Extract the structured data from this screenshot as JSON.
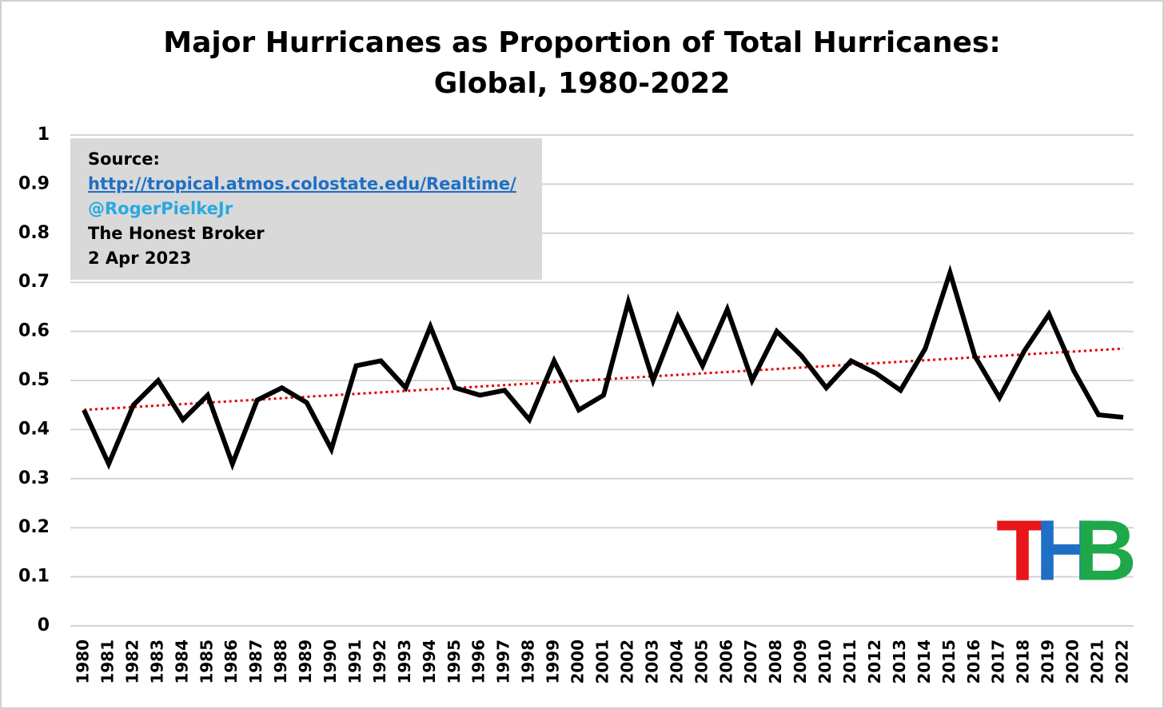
{
  "chart_data": {
    "type": "line",
    "title": "Major Hurricanes as Proportion of Total Hurricanes:",
    "subtitle": "Global, 1980-2022",
    "categories": [
      "1980",
      "1981",
      "1982",
      "1983",
      "1984",
      "1985",
      "1986",
      "1987",
      "1988",
      "1989",
      "1990",
      "1991",
      "1992",
      "1993",
      "1994",
      "1995",
      "1996",
      "1997",
      "1998",
      "1999",
      "2000",
      "2001",
      "2002",
      "2003",
      "2004",
      "2005",
      "2006",
      "2007",
      "2008",
      "2009",
      "2010",
      "2011",
      "2012",
      "2013",
      "2014",
      "2015",
      "2016",
      "2017",
      "2018",
      "2019",
      "2020",
      "2021",
      "2022"
    ],
    "values": [
      0.44,
      0.33,
      0.45,
      0.5,
      0.42,
      0.47,
      0.33,
      0.46,
      0.485,
      0.455,
      0.36,
      0.53,
      0.54,
      0.485,
      0.61,
      0.485,
      0.47,
      0.48,
      0.42,
      0.54,
      0.44,
      0.47,
      0.66,
      0.5,
      0.63,
      0.53,
      0.645,
      0.5,
      0.6,
      0.55,
      0.485,
      0.54,
      0.515,
      0.48,
      0.565,
      0.72,
      0.55,
      0.465,
      0.56,
      0.635,
      0.52,
      0.43,
      0.425
    ],
    "color": "#000000",
    "trendline": {
      "color": "#e00000",
      "values": [
        0.44,
        0.565
      ]
    },
    "ylim": [
      0,
      1
    ],
    "yticks": [
      0,
      0.1,
      0.2,
      0.3,
      0.4,
      0.5,
      0.6,
      0.7,
      0.8,
      0.9,
      1
    ],
    "grid": true,
    "annotation": {
      "lines": [
        "Source:",
        "http://tropical.atmos.colostate.edu/Realtime/",
        "@RogerPielkeJr",
        "The Honest Broker",
        "2 Apr 2023"
      ]
    },
    "logo": [
      "T",
      "H",
      "B"
    ]
  }
}
